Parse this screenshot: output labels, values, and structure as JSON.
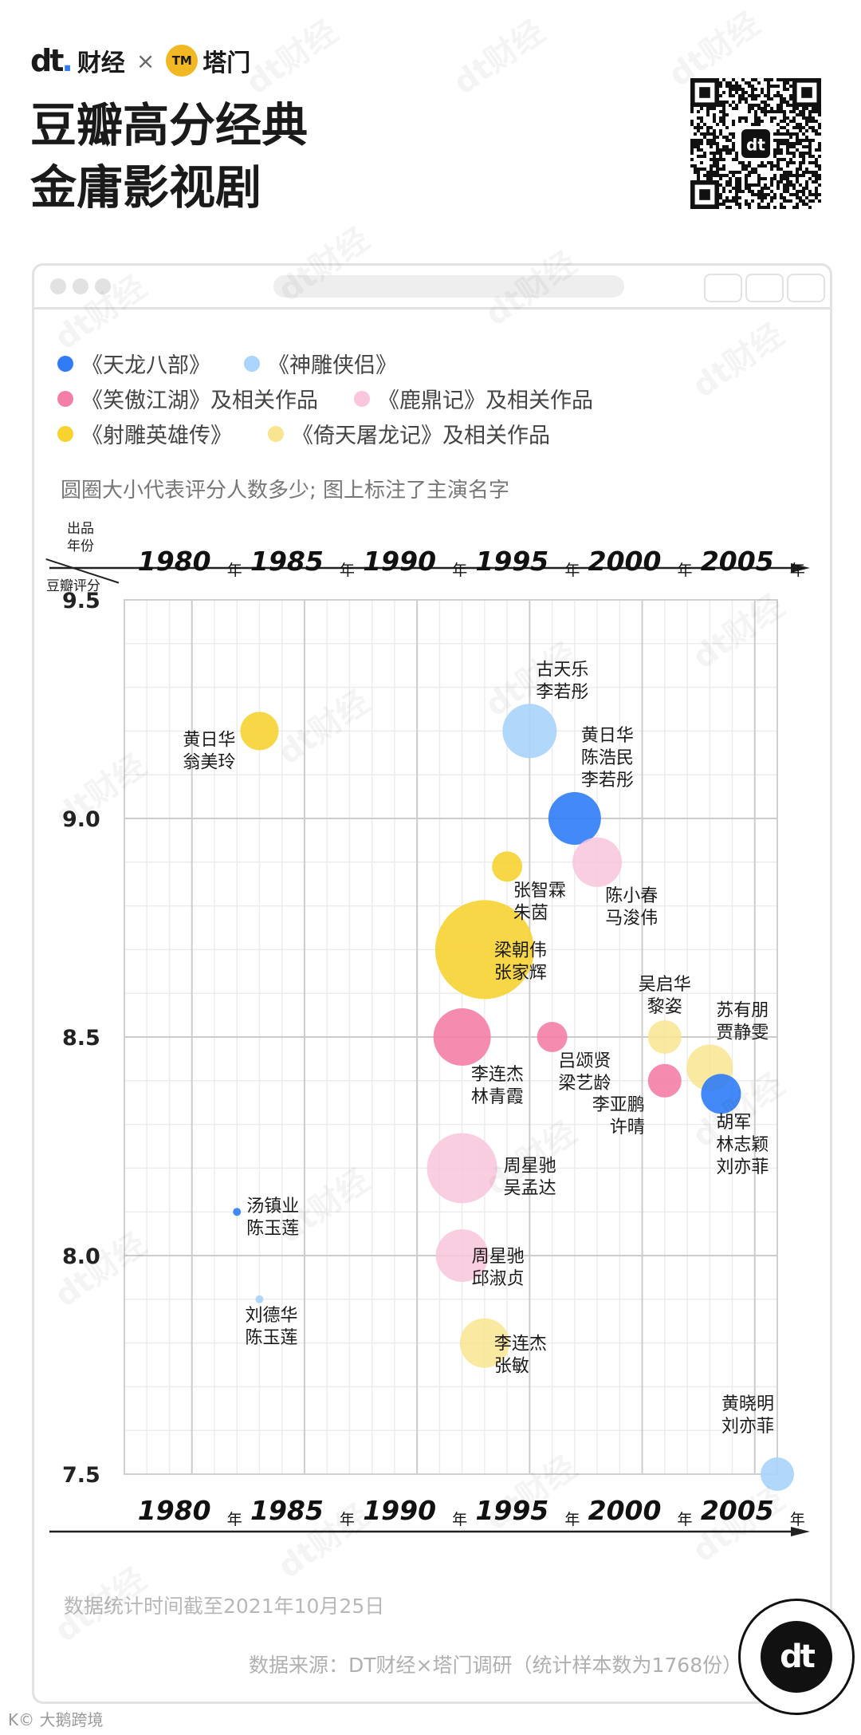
{
  "brand": {
    "dt_logo": "dt",
    "dt_name": "财经",
    "times": "×",
    "tamen_logo": "TM",
    "tamen_name": "塔门"
  },
  "title": {
    "line1": "豆瓣高分经典",
    "line2": "金庸影视剧"
  },
  "qr": {
    "center_logo": "dt"
  },
  "legend": [
    {
      "label": "《天龙八部》",
      "color": "#2f7cf6"
    },
    {
      "label": "《神雕侠侣》",
      "color": "#a9d4fb"
    },
    {
      "label": "《笑傲江湖》及相关作品",
      "color": "#f47fa6"
    },
    {
      "label": "《鹿鼎记》及相关作品",
      "color": "#f9c6dc"
    },
    {
      "label": "《射雕英雄传》",
      "color": "#f7d332"
    },
    {
      "label": "《倚天屠龙记》及相关作品",
      "color": "#f9e58f"
    }
  ],
  "note": "圆圈大小代表评分人数多少; 图上标注了主演名字",
  "axis_labels": {
    "year_line1": "出品",
    "year_line2": "年份",
    "rating": "豆瓣评分",
    "year_unit": "年"
  },
  "chart_data": {
    "type": "scatter",
    "title": "豆瓣高分经典金庸影视剧",
    "xlabel": "出品年份",
    "ylabel": "豆瓣评分",
    "xlim": [
      1977,
      2006
    ],
    "ylim": [
      7.5,
      9.5
    ],
    "x_ticks": [
      1980,
      1985,
      1990,
      1995,
      2000,
      2005
    ],
    "y_ticks": [
      "9.5",
      "9.0",
      "8.5",
      "8.0",
      "7.5"
    ],
    "points": [
      {
        "series": 4,
        "year": 1983,
        "rating": 9.2,
        "size": 24,
        "label": [
          "黄日华",
          "翁美玲"
        ],
        "label_pos": "left"
      },
      {
        "series": 1,
        "year": 1995,
        "rating": 9.2,
        "size": 34,
        "label": [
          "古天乐",
          "李若彤"
        ],
        "label_pos": "above-right"
      },
      {
        "series": 0,
        "year": 1997,
        "rating": 9.0,
        "size": 33,
        "label": [
          "黄日华",
          "陈浩民",
          "李若彤"
        ],
        "label_pos": "above-right"
      },
      {
        "series": 3,
        "year": 1998,
        "rating": 8.9,
        "size": 31,
        "label": [
          "陈小春",
          "马浚伟"
        ],
        "label_pos": "below-right"
      },
      {
        "series": 4,
        "year": 1994,
        "rating": 8.89,
        "size": 19,
        "label": [
          "张智霖",
          "朱茵"
        ],
        "label_pos": "below-right"
      },
      {
        "series": 4,
        "year": 1993,
        "rating": 8.7,
        "size": 62,
        "label": [
          "梁朝伟",
          "张家辉"
        ],
        "label_pos": "inside"
      },
      {
        "series": 2,
        "year": 1992,
        "rating": 8.5,
        "size": 36,
        "label": [
          "李连杰",
          "林青霞"
        ],
        "label_pos": "below-right"
      },
      {
        "series": 2,
        "year": 1996,
        "rating": 8.5,
        "size": 19,
        "label": [
          "吕颂贤",
          "梁艺龄"
        ],
        "label_pos": "below-right"
      },
      {
        "series": 5,
        "year": 2001,
        "rating": 8.5,
        "size": 21,
        "label": [
          "吴启华",
          "黎姿"
        ],
        "label_pos": "above"
      },
      {
        "series": 2,
        "year": 2001,
        "rating": 8.4,
        "size": 21,
        "label": [
          "李亚鹏",
          "许晴"
        ],
        "label_pos": "below-left"
      },
      {
        "series": 5,
        "year": 2003,
        "rating": 8.43,
        "size": 29,
        "label": [
          "苏有朋",
          "贾静雯"
        ],
        "label_pos": "above-right"
      },
      {
        "series": 0,
        "year": 2003.5,
        "rating": 8.37,
        "size": 25,
        "label": [
          "胡军",
          "林志颖",
          "刘亦菲"
        ],
        "label_pos": "below"
      },
      {
        "series": 3,
        "year": 1992,
        "rating": 8.2,
        "size": 44,
        "label": [
          "周星驰",
          "吴孟达"
        ],
        "label_pos": "right"
      },
      {
        "series": 3,
        "year": 1992,
        "rating": 8.0,
        "size": 33,
        "label": [
          "周星驰",
          "邱淑贞"
        ],
        "label_pos": "inside"
      },
      {
        "series": 0,
        "year": 1982,
        "rating": 8.1,
        "size": 5,
        "label": [
          "汤镇业",
          "陈玉莲"
        ],
        "label_pos": "right"
      },
      {
        "series": 1,
        "year": 1983,
        "rating": 7.9,
        "size": 5,
        "label": [
          "刘德华",
          "陈玉莲"
        ],
        "label_pos": "below"
      },
      {
        "series": 5,
        "year": 1993,
        "rating": 7.8,
        "size": 31,
        "label": [
          "李连杰",
          "张敏"
        ],
        "label_pos": "inside"
      },
      {
        "series": 1,
        "year": 2006,
        "rating": 7.5,
        "size": 21,
        "label": [
          "黄晓明",
          "刘亦菲"
        ],
        "label_pos": "above-left"
      }
    ]
  },
  "footnote": "数据统计时间截至2021年10月25日",
  "source": "数据来源：DT财经×塔门调研（统计样本数为1768份）",
  "badge": "dt",
  "corner": "K© 大鹅跨境",
  "watermark": "dt财经"
}
